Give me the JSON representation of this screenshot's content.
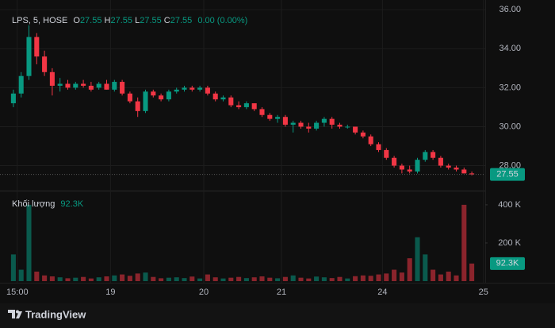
{
  "chart_data": {
    "type": "candlestick",
    "legend": {
      "symbol": "LPS, 5, HOSE",
      "o": "O",
      "open": "27.55",
      "h": "H",
      "high": "27.55",
      "l": "L",
      "low": "27.55",
      "c": "C",
      "close": "27.55",
      "change": "0.00 (0.00%)"
    },
    "volume_title": "Khối lượng",
    "volume_label": "92.3K",
    "brand": "TradingView",
    "up_color": "#089981",
    "down_color": "#f23645",
    "grid": true,
    "xlim": [
      0,
      60
    ],
    "xticks": [
      {
        "value": 1,
        "label": "15:00"
      },
      {
        "value": 13,
        "label": "19"
      },
      {
        "value": 25,
        "label": "20"
      },
      {
        "value": 35,
        "label": "21"
      },
      {
        "value": 48,
        "label": "24"
      },
      {
        "value": 61,
        "label": "25"
      }
    ],
    "ylim": [
      26.8,
      36.5
    ],
    "yticks": [
      {
        "value": 28,
        "label": "28.00"
      },
      {
        "value": 30,
        "label": "30.00"
      },
      {
        "value": 32,
        "label": "32.00"
      },
      {
        "value": 34,
        "label": "34.00"
      },
      {
        "value": 36,
        "label": "36.00"
      }
    ],
    "y2lim": [
      0,
      462
    ],
    "y2ticks": [
      {
        "value": 200,
        "label": "200 K"
      },
      {
        "value": 400,
        "label": "400 K"
      }
    ],
    "open": [
      31.2,
      31.7,
      32.6,
      34.6,
      33.6,
      32.8,
      32.1,
      32.2,
      32.0,
      32.2,
      32.1,
      32.0,
      32.2,
      31.9,
      32.3,
      31.7,
      31.3,
      30.8,
      31.8,
      31.6,
      31.4,
      31.8,
      31.9,
      32.0,
      31.9,
      32.0,
      31.7,
      31.4,
      31.5,
      31.1,
      31.0,
      31.2,
      30.9,
      30.6,
      30.4,
      30.5,
      30.1,
      30.2,
      30.0,
      29.9,
      30.2,
      30.4,
      30.1,
      30.0,
      30.0,
      29.7,
      29.5,
      29.1,
      28.8,
      28.4,
      28.0,
      27.8,
      27.7,
      28.3,
      28.7,
      28.4,
      28.0,
      27.9,
      27.8,
      27.6
    ],
    "high": [
      31.9,
      32.8,
      35.2,
      34.8,
      33.9,
      33.0,
      32.5,
      32.4,
      32.3,
      32.4,
      32.3,
      32.3,
      32.4,
      32.4,
      32.4,
      31.8,
      31.5,
      31.9,
      31.9,
      31.7,
      31.9,
      32.0,
      32.1,
      32.1,
      32.1,
      32.1,
      31.8,
      31.6,
      31.6,
      31.3,
      31.3,
      31.2,
      31.0,
      30.7,
      30.6,
      30.6,
      30.3,
      30.3,
      30.2,
      30.3,
      30.5,
      30.5,
      30.2,
      30.1,
      30.0,
      29.8,
      29.6,
      29.2,
      28.9,
      28.5,
      28.1,
      28.0,
      28.4,
      28.8,
      28.8,
      28.5,
      28.1,
      28.0,
      27.9,
      27.7
    ],
    "low": [
      31.0,
      31.5,
      32.4,
      33.2,
      32.6,
      31.6,
      31.8,
      31.9,
      31.9,
      32.0,
      31.8,
      31.9,
      31.9,
      31.8,
      31.6,
      31.2,
      30.5,
      30.7,
      31.5,
      31.3,
      31.3,
      31.7,
      31.8,
      31.8,
      31.8,
      31.6,
      31.3,
      31.3,
      31.0,
      30.9,
      30.9,
      30.8,
      30.5,
      30.3,
      30.2,
      30.0,
      29.7,
      29.9,
      29.7,
      29.8,
      30.0,
      29.9,
      29.9,
      29.9,
      29.6,
      29.4,
      29.0,
      28.7,
      28.3,
      27.9,
      27.6,
      27.6,
      27.6,
      28.2,
      28.3,
      27.9,
      27.8,
      27.7,
      27.6,
      27.5
    ],
    "close": [
      31.7,
      32.6,
      34.6,
      33.6,
      32.8,
      32.1,
      32.2,
      32.0,
      32.2,
      32.1,
      31.9,
      32.2,
      31.9,
      32.3,
      31.7,
      31.3,
      30.8,
      31.8,
      31.6,
      31.4,
      31.8,
      31.9,
      32.0,
      31.9,
      32.0,
      31.7,
      31.4,
      31.5,
      31.1,
      31.0,
      31.2,
      30.9,
      30.6,
      30.4,
      30.5,
      30.1,
      30.2,
      30.0,
      29.9,
      30.2,
      30.4,
      30.1,
      30.0,
      30.0,
      29.7,
      29.5,
      29.1,
      28.8,
      28.4,
      28.0,
      27.8,
      27.7,
      28.3,
      28.7,
      28.4,
      28.0,
      27.9,
      27.8,
      27.6,
      27.55
    ],
    "volume": [
      140,
      60,
      400,
      50,
      30,
      25,
      20,
      15,
      18,
      22,
      14,
      20,
      25,
      30,
      35,
      28,
      40,
      45,
      22,
      15,
      18,
      20,
      16,
      24,
      14,
      35,
      20,
      14,
      18,
      22,
      16,
      20,
      25,
      18,
      15,
      22,
      30,
      18,
      14,
      24,
      20,
      16,
      22,
      14,
      26,
      30,
      28,
      35,
      40,
      60,
      45,
      120,
      230,
      140,
      60,
      35,
      50,
      30,
      400,
      92.3
    ]
  }
}
